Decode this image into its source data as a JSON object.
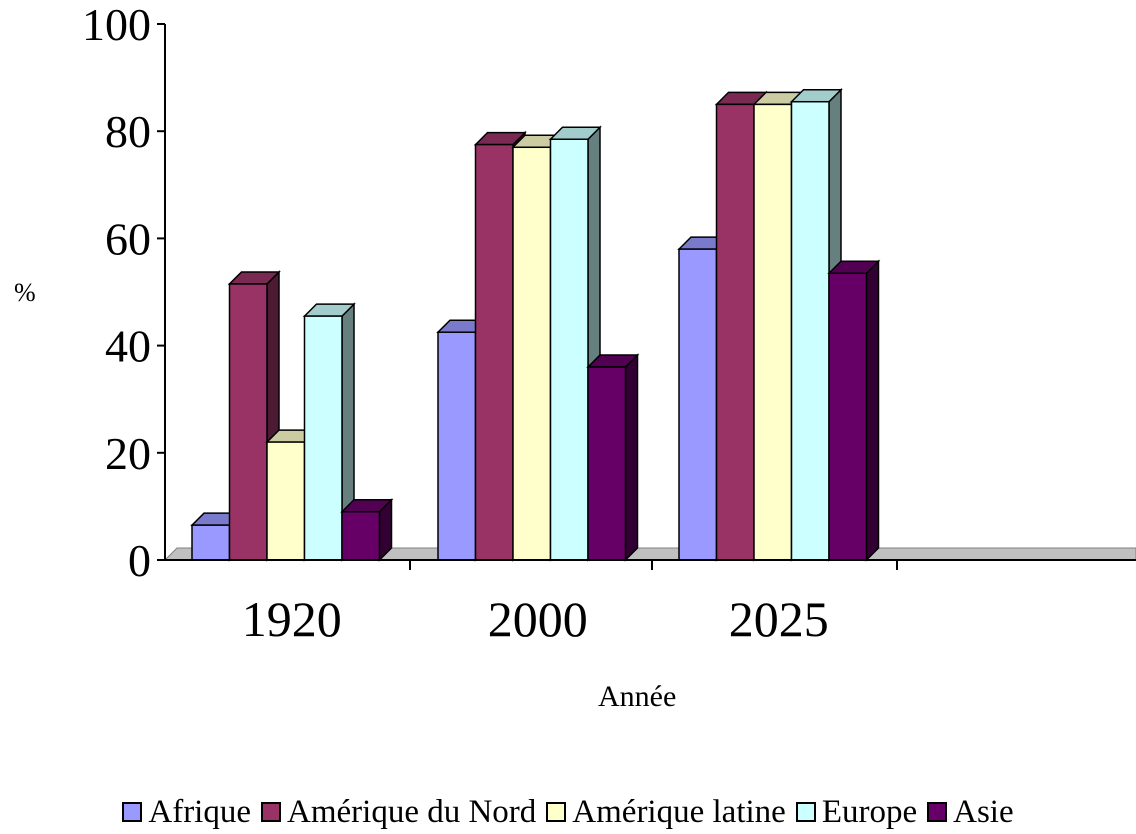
{
  "chart_data": {
    "type": "bar",
    "categories": [
      "1920",
      "2000",
      "2025"
    ],
    "series": [
      {
        "name": "Afrique",
        "values": [
          6.5,
          42.5,
          58
        ],
        "color": "#9999ff"
      },
      {
        "name": "Amérique du Nord",
        "values": [
          51.5,
          77.5,
          85
        ],
        "color": "#993366"
      },
      {
        "name": "Amérique latine",
        "values": [
          22,
          77,
          85
        ],
        "color": "#ffffcc"
      },
      {
        "name": "Europe",
        "values": [
          45.5,
          78.5,
          85.5
        ],
        "color": "#ccffff"
      },
      {
        "name": "Asie",
        "values": [
          9,
          36,
          53.5
        ],
        "color": "#660066"
      }
    ],
    "ylabel": "%",
    "xlabel": "Année",
    "ylim": [
      0,
      100
    ],
    "yticks": [
      "0",
      "20",
      "40",
      "60",
      "80",
      "100"
    ],
    "grid": false,
    "legend_position": "bottom"
  }
}
